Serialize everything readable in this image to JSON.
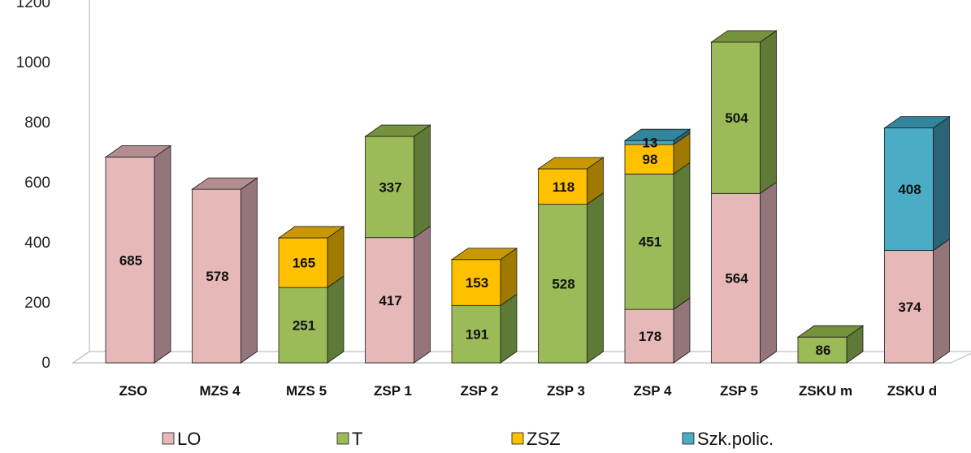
{
  "chart_data": {
    "type": "bar",
    "stacked": true,
    "three_d": true,
    "categories": [
      "ZSO",
      "MZS 4",
      "MZS 5",
      "ZSP 1",
      "ZSP 2",
      "ZSP 3",
      "ZSP 4",
      "ZSP 5",
      "ZSKU m",
      "ZSKU d"
    ],
    "series": [
      {
        "name": "LO",
        "color": "#e6b9b8",
        "side_color": "#94767a",
        "top_color": "#b38d8f",
        "values": [
          685,
          578,
          null,
          417,
          null,
          null,
          178,
          564,
          null,
          374
        ]
      },
      {
        "name": "T",
        "color": "#9bbb59",
        "side_color": "#5f7a36",
        "top_color": "#76923c",
        "values": [
          null,
          null,
          251,
          337,
          191,
          528,
          451,
          504,
          86,
          null
        ]
      },
      {
        "name": "ZSZ",
        "color": "#ffc000",
        "side_color": "#a07a00",
        "top_color": "#c99700",
        "values": [
          null,
          null,
          165,
          null,
          153,
          118,
          98,
          null,
          null,
          null
        ]
      },
      {
        "name": "Szk.polic.",
        "color": "#4bacc6",
        "side_color": "#2a6577",
        "top_color": "#31859c",
        "values": [
          null,
          null,
          null,
          null,
          null,
          null,
          13,
          null,
          null,
          408
        ]
      }
    ],
    "ylim": [
      0,
      1200
    ],
    "yticks": [
      "0",
      "200",
      "400",
      "600",
      "800",
      "1000",
      "1200"
    ],
    "ytick_values": [
      0,
      200,
      400,
      600,
      800,
      1000,
      1200
    ],
    "legend_position": "bottom",
    "grid": false,
    "title": "",
    "xlabel": "",
    "ylabel": ""
  }
}
